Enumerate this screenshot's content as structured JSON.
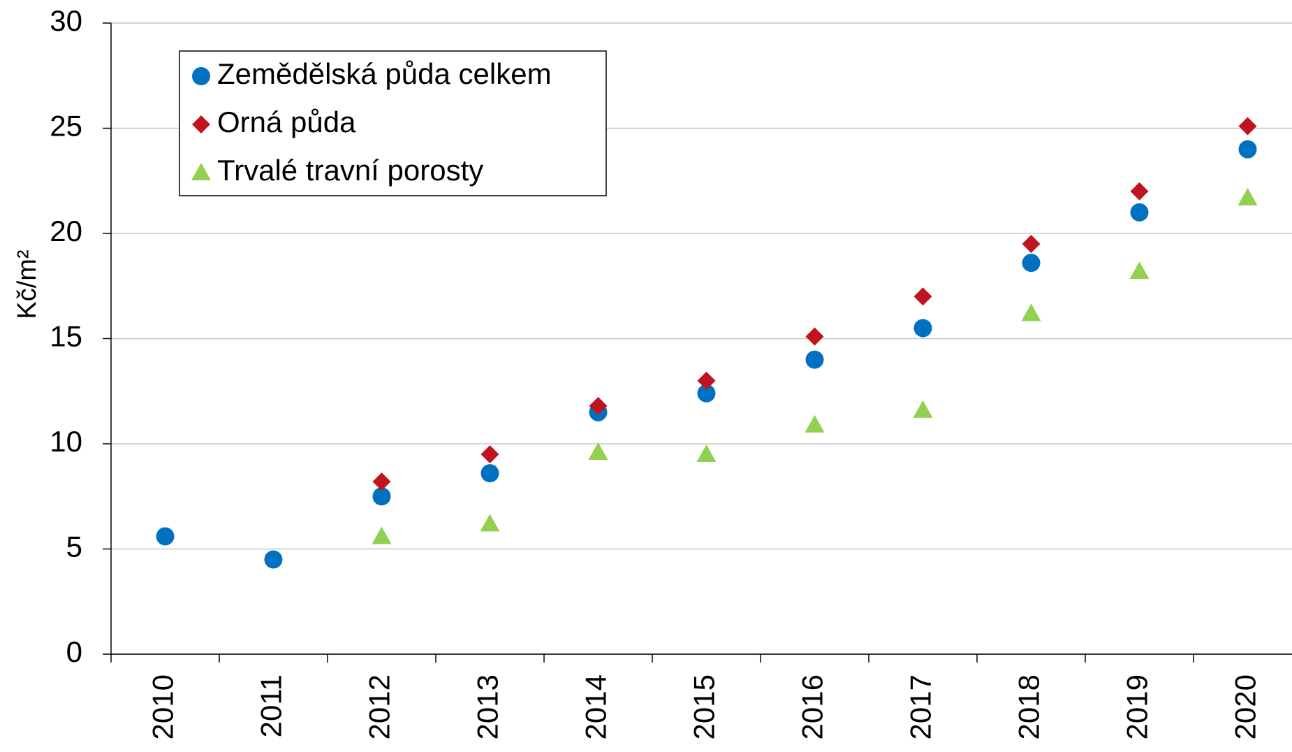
{
  "chart_data": {
    "type": "scatter",
    "ylabel": "Kč/m²",
    "categories": [
      "2010",
      "2011",
      "2012",
      "2013",
      "2014",
      "2015",
      "2016",
      "2017",
      "2018",
      "2019",
      "2020"
    ],
    "series": [
      {
        "name": "Zemědělská půda celkem",
        "color": "#0070c0",
        "marker": "circle",
        "values": [
          5.6,
          4.5,
          7.5,
          8.6,
          11.5,
          12.4,
          14.0,
          15.5,
          18.6,
          21.0,
          24.0
        ]
      },
      {
        "name": "Orná půda",
        "color": "#c0141e",
        "marker": "diamond",
        "values": [
          null,
          null,
          8.2,
          9.5,
          11.8,
          13.0,
          15.1,
          17.0,
          19.5,
          22.0,
          25.1
        ]
      },
      {
        "name": "Trvalé travní porosty",
        "color": "#92d050",
        "marker": "triangle",
        "values": [
          null,
          null,
          5.6,
          6.2,
          9.6,
          9.5,
          10.9,
          11.6,
          16.2,
          18.2,
          21.7
        ]
      }
    ],
    "ylim": [
      0,
      30
    ],
    "yticks": [
      0,
      5,
      10,
      15,
      20,
      25,
      30
    ],
    "grid": true,
    "legend": "upper left"
  }
}
